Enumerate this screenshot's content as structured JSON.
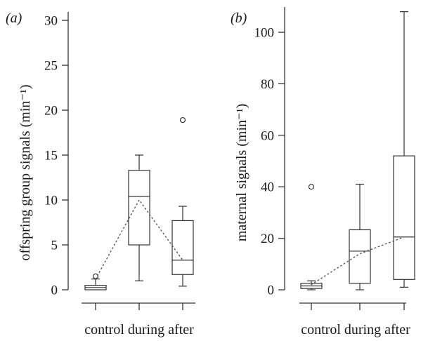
{
  "chart_data": [
    {
      "type": "box",
      "panel_label": "(a)",
      "ylabel": "offspring group signals (min⁻¹)",
      "xlabel": "control during after",
      "categories": [
        "control",
        "during",
        "after"
      ],
      "ylim": [
        -1,
        31
      ],
      "yticks": [
        0,
        5,
        10,
        15,
        20,
        25,
        30
      ],
      "boxes": [
        {
          "category": "control",
          "whisker_low": 0.0,
          "q1": 0.0,
          "median": 0.25,
          "q3": 0.5,
          "whisker_high": 1.2,
          "outliers": [
            1.5
          ]
        },
        {
          "category": "during",
          "whisker_low": 1.0,
          "q1": 5.0,
          "median": 10.4,
          "q3": 13.3,
          "whisker_high": 15.0,
          "outliers": []
        },
        {
          "category": "after",
          "whisker_low": 0.4,
          "q1": 1.7,
          "median": 3.3,
          "q3": 7.7,
          "whisker_high": 9.3,
          "outliers": [
            18.9
          ]
        }
      ],
      "mean_line": [
        1.2,
        10.0,
        3.3
      ]
    },
    {
      "type": "box",
      "panel_label": "(b)",
      "ylabel": "maternal signals (min⁻¹)",
      "xlabel": "control during after",
      "categories": [
        "control",
        "during",
        "after"
      ],
      "ylim": [
        -5,
        110
      ],
      "yticks": [
        0,
        20,
        40,
        60,
        80,
        100
      ],
      "boxes": [
        {
          "category": "control",
          "whisker_low": 0.0,
          "q1": 0.5,
          "median": 1.5,
          "q3": 2.5,
          "whisker_high": 3.5,
          "outliers": [
            40.0
          ]
        },
        {
          "category": "during",
          "whisker_low": 0.0,
          "q1": 2.5,
          "median": 15.0,
          "q3": 23.3,
          "whisker_high": 41.0,
          "outliers": []
        },
        {
          "category": "after",
          "whisker_low": 1.0,
          "q1": 4.0,
          "median": 20.5,
          "q3": 52.0,
          "whisker_high": 108.0,
          "outliers": []
        }
      ],
      "mean_line": [
        2.0,
        14.0,
        20.5
      ]
    }
  ]
}
